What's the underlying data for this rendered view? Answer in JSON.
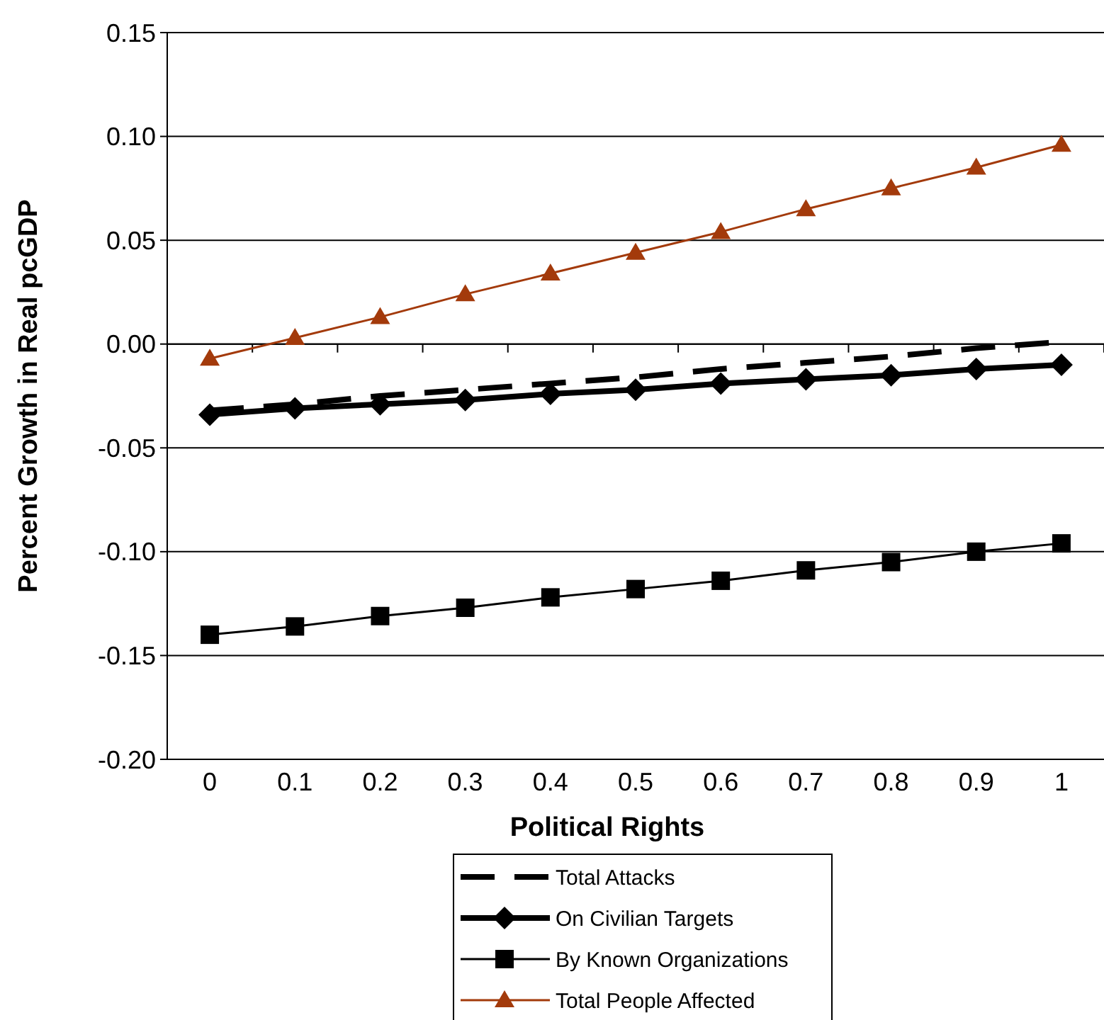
{
  "chart_data": {
    "type": "line",
    "xlabel": "Political Rights",
    "ylabel": "Percent Growth in Real pcGDP",
    "categories": [
      "0",
      "0.1",
      "0.2",
      "0.3",
      "0.4",
      "0.5",
      "0.6",
      "0.7",
      "0.8",
      "0.9",
      "1"
    ],
    "ylim": [
      -0.2,
      0.15
    ],
    "yticks": [
      {
        "value": -0.2,
        "label": "-0.20"
      },
      {
        "value": -0.15,
        "label": "-0.15"
      },
      {
        "value": -0.1,
        "label": "-0.10"
      },
      {
        "value": -0.05,
        "label": "-0.05"
      },
      {
        "value": 0,
        "label": "0.00"
      },
      {
        "value": 0.05,
        "label": "0.05"
      },
      {
        "value": 0.1,
        "label": "0.10"
      },
      {
        "value": 0.15,
        "label": "0.15"
      }
    ],
    "grid": "y",
    "legend": "bottom",
    "series": [
      {
        "name": "Total Attacks",
        "color": "#000000",
        "marker": "none",
        "line_style": "dashed",
        "values": [
          -0.032,
          -0.029,
          -0.025,
          -0.022,
          -0.019,
          -0.016,
          -0.012,
          -0.009,
          -0.006,
          -0.002,
          0.001
        ]
      },
      {
        "name": "On Civilian Targets",
        "color": "#000000",
        "marker": "diamond",
        "line_style": "solid",
        "values": [
          -0.034,
          -0.031,
          -0.029,
          -0.027,
          -0.024,
          -0.022,
          -0.019,
          -0.017,
          -0.015,
          -0.012,
          -0.01
        ]
      },
      {
        "name": "By Known Organizations",
        "color": "#000000",
        "marker": "square",
        "line_style": "solid",
        "values": [
          -0.14,
          -0.136,
          -0.131,
          -0.127,
          -0.122,
          -0.118,
          -0.114,
          -0.109,
          -0.105,
          -0.1,
          -0.096
        ]
      },
      {
        "name": "Total People Affected",
        "color": "#a33a0b",
        "marker": "triangle",
        "line_style": "solid",
        "values": [
          -0.007,
          0.003,
          0.013,
          0.024,
          0.034,
          0.044,
          0.054,
          0.065,
          0.075,
          0.085,
          0.096
        ]
      }
    ]
  }
}
